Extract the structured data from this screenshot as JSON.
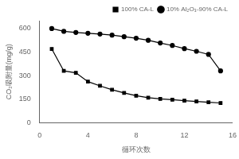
{
  "chart_data": {
    "type": "line",
    "xlabel": "循环次数",
    "ylabel": "CO₂吸附量(mg/g)",
    "x": [
      1,
      2,
      3,
      4,
      5,
      6,
      7,
      8,
      9,
      10,
      11,
      12,
      13,
      14,
      15
    ],
    "series": [
      {
        "name": "100% CA-L",
        "color": "#000000",
        "marker": "square",
        "values": [
          470,
          330,
          318,
          262,
          235,
          210,
          190,
          172,
          160,
          152,
          147,
          141,
          136,
          130,
          126
        ]
      },
      {
        "name": "10% Al₂O₃-90% CA-L",
        "color": "#000000",
        "marker": "circle",
        "values": [
          600,
          582,
          575,
          570,
          565,
          558,
          548,
          538,
          525,
          508,
          492,
          472,
          455,
          435,
          330
        ]
      }
    ],
    "xlim": [
      0,
      16
    ],
    "ylim": [
      0,
      650
    ],
    "xticks": [
      0,
      4,
      8,
      12,
      16
    ],
    "yticks": [
      0,
      150,
      300,
      450,
      600
    ],
    "grid": false,
    "legend": "upper right"
  }
}
